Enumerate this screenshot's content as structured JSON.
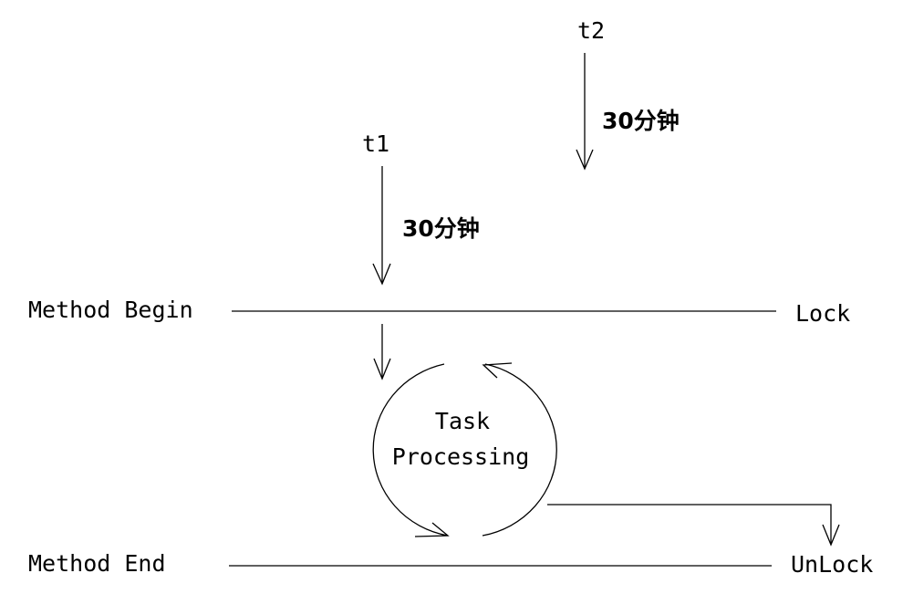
{
  "threads": {
    "t2": {
      "label": "t2",
      "wait": "30分钟"
    },
    "t1": {
      "label": "t1",
      "wait": "30分钟"
    }
  },
  "method_begin": {
    "label": "Method Begin",
    "state": "Lock",
    "state_color": "#e8823a"
  },
  "method_end": {
    "label": "Method End",
    "state": "UnLock",
    "state_color": "#2ca02c"
  },
  "task": {
    "line1": "Task",
    "line2": "Processing"
  }
}
